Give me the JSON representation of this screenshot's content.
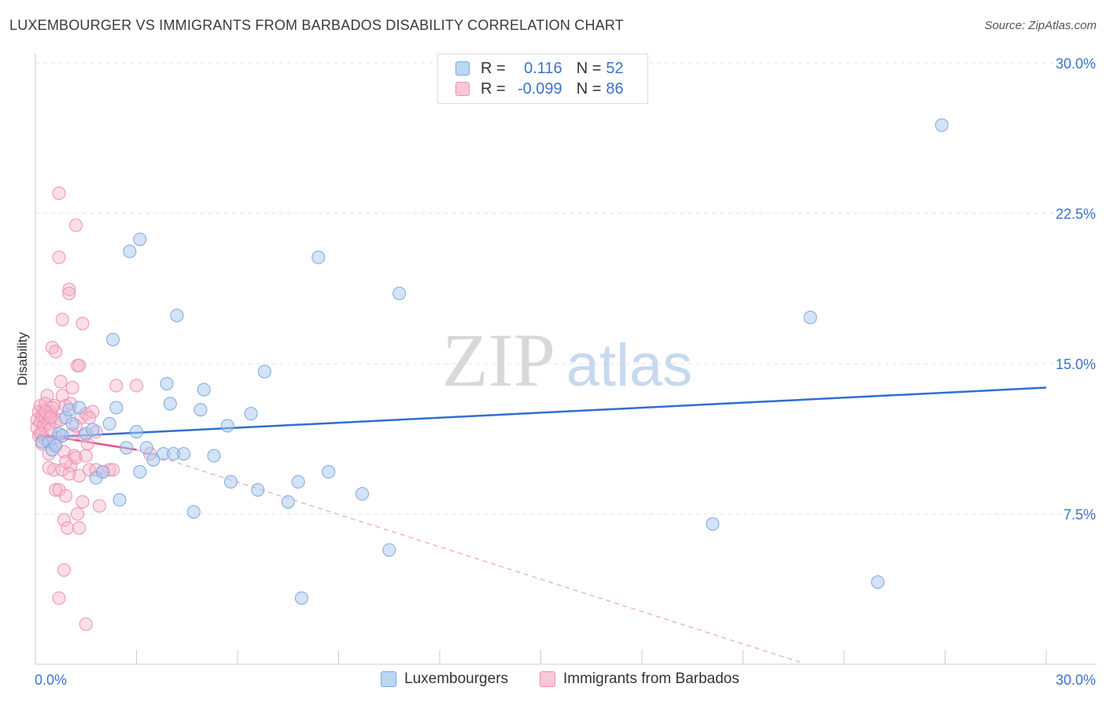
{
  "title": "LUXEMBOURGER VS IMMIGRANTS FROM BARBADOS DISABILITY CORRELATION CHART",
  "source": "Source: ZipAtlas.com",
  "watermark": {
    "zip": "ZIP",
    "atlas": "atlas"
  },
  "legend": {
    "rows": [
      {
        "r_label": "R =",
        "r_value": "0.116",
        "n_label": "N =",
        "n_value": "52"
      },
      {
        "r_label": "R =",
        "r_value": "-0.099",
        "n_label": "N =",
        "n_value": "86"
      }
    ]
  },
  "bottom_legend": {
    "series1": "Luxembourgers",
    "series2": "Immigrants from Barbados"
  },
  "colors": {
    "blue_fill": "#a9c8f0",
    "blue_stroke": "#7aa7e0",
    "blue_line": "#2f6fd0",
    "pink_fill": "#f6b6cb",
    "pink_stroke": "#ee8fb0",
    "pink_line": "#e0508a",
    "grid": "#e2e2e2",
    "axis_label": "#3b73c8"
  },
  "chart_data": {
    "type": "scatter",
    "title": "LUXEMBOURGER VS IMMIGRANTS FROM BARBADOS DISABILITY CORRELATION CHART",
    "xlabel": "",
    "ylabel": "Disability",
    "xlim": [
      0,
      30
    ],
    "ylim": [
      0,
      30
    ],
    "x_tick_labels": [
      "0.0%",
      "30.0%"
    ],
    "y_ticks": [
      7.5,
      15.0,
      22.5,
      30.0
    ],
    "y_tick_labels": [
      "7.5%",
      "15.0%",
      "22.5%",
      "30.0%"
    ],
    "series": [
      {
        "name": "Luxembourgers",
        "R": 0.116,
        "N": 52,
        "trend": {
          "x": [
            0,
            30
          ],
          "y": [
            11.3,
            13.8
          ]
        },
        "points": [
          [
            0.2,
            11.1
          ],
          [
            0.4,
            11.1
          ],
          [
            0.5,
            10.7
          ],
          [
            0.6,
            10.9
          ],
          [
            0.7,
            11.5
          ],
          [
            0.9,
            12.3
          ],
          [
            1.0,
            12.7
          ],
          [
            1.3,
            12.8
          ],
          [
            1.5,
            11.5
          ],
          [
            1.7,
            11.7
          ],
          [
            1.8,
            9.3
          ],
          [
            2.0,
            9.6
          ],
          [
            2.2,
            12.0
          ],
          [
            2.3,
            16.2
          ],
          [
            2.4,
            12.8
          ],
          [
            2.5,
            8.2
          ],
          [
            2.7,
            10.8
          ],
          [
            2.8,
            20.6
          ],
          [
            3.1,
            21.2
          ],
          [
            3.1,
            9.6
          ],
          [
            3.3,
            10.8
          ],
          [
            3.5,
            10.2
          ],
          [
            3.8,
            10.5
          ],
          [
            3.9,
            14.0
          ],
          [
            4.0,
            13.0
          ],
          [
            4.1,
            10.5
          ],
          [
            4.2,
            17.4
          ],
          [
            4.4,
            10.5
          ],
          [
            4.7,
            7.6
          ],
          [
            4.9,
            12.7
          ],
          [
            5.0,
            13.7
          ],
          [
            5.7,
            11.9
          ],
          [
            5.8,
            9.1
          ],
          [
            6.4,
            12.5
          ],
          [
            6.6,
            8.7
          ],
          [
            6.8,
            14.6
          ],
          [
            7.5,
            8.1
          ],
          [
            7.8,
            9.1
          ],
          [
            7.9,
            3.3
          ],
          [
            8.4,
            20.3
          ],
          [
            8.7,
            9.6
          ],
          [
            9.7,
            8.5
          ],
          [
            10.5,
            5.7
          ],
          [
            10.8,
            18.5
          ],
          [
            20.1,
            7.0
          ],
          [
            23.0,
            17.3
          ],
          [
            25.0,
            4.1
          ],
          [
            26.9,
            26.9
          ],
          [
            3.0,
            11.6
          ],
          [
            1.1,
            12.0
          ],
          [
            0.8,
            11.4
          ],
          [
            5.3,
            10.4
          ]
        ]
      },
      {
        "name": "Immigrants from Barbados",
        "R": -0.099,
        "N": 86,
        "trend": {
          "x": [
            0,
            3.0
          ],
          "y": [
            11.5,
            10.7
          ]
        },
        "trend_extended": {
          "x": [
            3.0,
            22.7
          ],
          "y": [
            10.7,
            0.1
          ]
        },
        "points": [
          [
            0.05,
            12.2
          ],
          [
            0.05,
            11.8
          ],
          [
            0.1,
            12.6
          ],
          [
            0.1,
            11.4
          ],
          [
            0.15,
            12.9
          ],
          [
            0.15,
            12.1
          ],
          [
            0.2,
            12.4
          ],
          [
            0.2,
            11.6
          ],
          [
            0.25,
            12.7
          ],
          [
            0.25,
            11.9
          ],
          [
            0.3,
            12.3
          ],
          [
            0.3,
            11.2
          ],
          [
            0.35,
            13.4
          ],
          [
            0.35,
            12.5
          ],
          [
            0.4,
            12.0
          ],
          [
            0.4,
            10.5
          ],
          [
            0.45,
            12.6
          ],
          [
            0.45,
            11.7
          ],
          [
            0.5,
            15.8
          ],
          [
            0.5,
            12.4
          ],
          [
            0.55,
            12.9
          ],
          [
            0.55,
            9.7
          ],
          [
            0.6,
            15.6
          ],
          [
            0.6,
            12.1
          ],
          [
            0.6,
            8.7
          ],
          [
            0.65,
            11.3
          ],
          [
            0.7,
            23.5
          ],
          [
            0.7,
            20.3
          ],
          [
            0.7,
            8.7
          ],
          [
            0.75,
            14.1
          ],
          [
            0.75,
            12.2
          ],
          [
            0.8,
            17.2
          ],
          [
            0.8,
            13.4
          ],
          [
            0.8,
            9.7
          ],
          [
            0.85,
            10.6
          ],
          [
            0.85,
            7.2
          ],
          [
            0.85,
            4.7
          ],
          [
            0.9,
            12.9
          ],
          [
            0.9,
            8.4
          ],
          [
            0.95,
            6.8
          ],
          [
            1.0,
            18.7
          ],
          [
            1.0,
            18.5
          ],
          [
            1.05,
            13.0
          ],
          [
            1.05,
            9.9
          ],
          [
            1.1,
            13.8
          ],
          [
            1.1,
            11.5
          ],
          [
            1.15,
            10.4
          ],
          [
            1.2,
            21.9
          ],
          [
            1.2,
            10.3
          ],
          [
            1.25,
            14.9
          ],
          [
            1.25,
            7.5
          ],
          [
            1.3,
            14.9
          ],
          [
            1.3,
            9.4
          ],
          [
            1.3,
            6.8
          ],
          [
            1.35,
            12.3
          ],
          [
            1.4,
            17.0
          ],
          [
            1.4,
            8.1
          ],
          [
            1.45,
            11.4
          ],
          [
            1.5,
            12.5
          ],
          [
            1.5,
            10.4
          ],
          [
            1.55,
            11.0
          ],
          [
            1.6,
            9.7
          ],
          [
            1.7,
            12.6
          ],
          [
            1.8,
            9.7
          ],
          [
            1.9,
            7.9
          ],
          [
            2.2,
            9.7
          ],
          [
            2.3,
            9.7
          ],
          [
            2.4,
            13.9
          ],
          [
            3.0,
            13.9
          ],
          [
            3.4,
            10.5
          ],
          [
            0.7,
            3.3
          ],
          [
            1.5,
            2.0
          ],
          [
            0.3,
            13.0
          ],
          [
            0.5,
            12.8
          ],
          [
            0.4,
            9.8
          ],
          [
            1.0,
            9.5
          ],
          [
            0.2,
            11.0
          ],
          [
            0.6,
            11.0
          ],
          [
            1.2,
            11.9
          ],
          [
            0.9,
            10.1
          ],
          [
            1.6,
            12.3
          ],
          [
            0.3,
            12.6
          ],
          [
            0.15,
            11.5
          ],
          [
            0.45,
            12.3
          ],
          [
            1.8,
            11.6
          ],
          [
            2.0,
            9.6
          ]
        ]
      }
    ]
  }
}
